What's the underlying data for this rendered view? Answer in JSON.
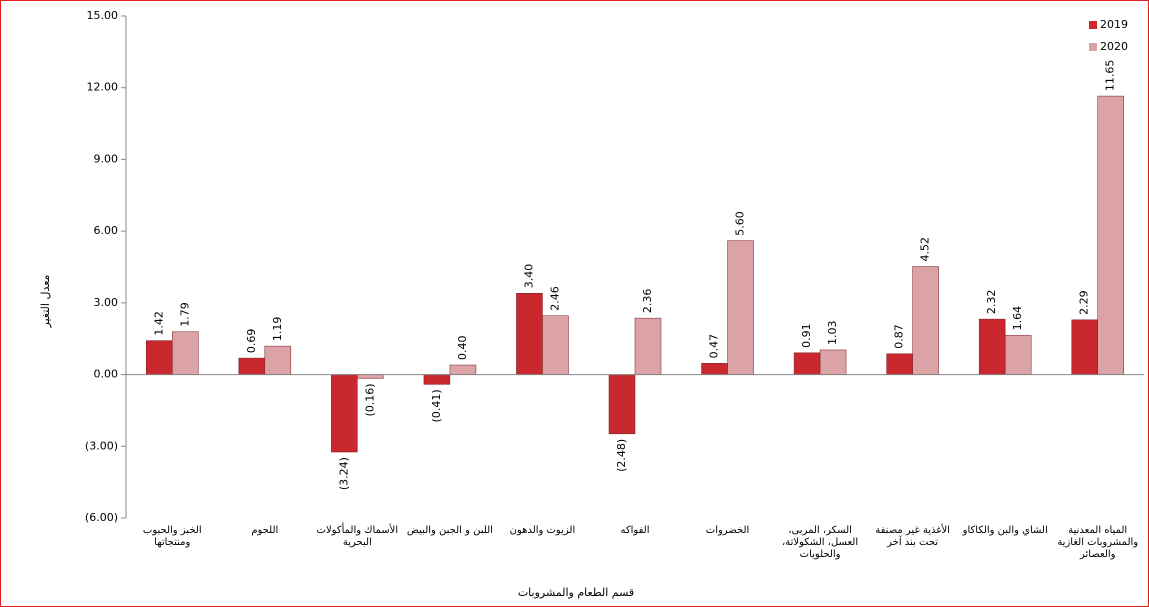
{
  "chart_data": {
    "type": "bar",
    "y_label": "معدل التغير",
    "x_label": "قسم الطعام والمشروبات",
    "categories": [
      "الخبز والحبوب ومنتجاتها",
      "اللحوم",
      "الأسماك والمأكولات البحرية",
      "اللبن و الجبن والبيض",
      "الزيوت والدهون",
      "الفواكه",
      "الخضروات",
      "السكر، المربى، العسل، الشكولاتة، والحلويات",
      "الأغذية غير مصنفة تحت بند آخر",
      "الشاي والبن والكاكاو",
      "المياه المعدنية والمشروبات الغازية والعصائر"
    ],
    "series": [
      {
        "name": "2019",
        "color": "#c8282e",
        "values": [
          1.42,
          0.69,
          -3.24,
          -0.41,
          3.4,
          -2.48,
          0.47,
          0.91,
          0.87,
          2.32,
          2.29
        ],
        "value_labels": [
          "1.42",
          "0.69",
          "(3.24)",
          "(0.41)",
          "3.40",
          "(2.48)",
          "0.47",
          "0.91",
          "0.87",
          "2.32",
          "2.29"
        ]
      },
      {
        "name": "2020",
        "color": "#dba3a6",
        "values": [
          1.79,
          1.19,
          -0.16,
          0.4,
          2.46,
          2.36,
          5.6,
          1.03,
          4.52,
          1.64,
          11.65
        ],
        "value_labels": [
          "1.79",
          "1.19",
          "(0.16)",
          "0.40",
          "2.46",
          "2.36",
          "5.60",
          "1.03",
          "4.52",
          "1.64",
          "11.65"
        ]
      }
    ],
    "ylim": [
      -6,
      15
    ],
    "yticks": [
      {
        "value": -6,
        "label": "(6.00)"
      },
      {
        "value": -3,
        "label": "(3.00)"
      },
      {
        "value": 0,
        "label": "0.00"
      },
      {
        "value": 3,
        "label": "3.00"
      },
      {
        "value": 6,
        "label": "6.00"
      },
      {
        "value": 9,
        "label": "9.00"
      },
      {
        "value": 12,
        "label": "12.00"
      },
      {
        "value": 15,
        "label": "15.00"
      }
    ],
    "legend": "top-right"
  }
}
